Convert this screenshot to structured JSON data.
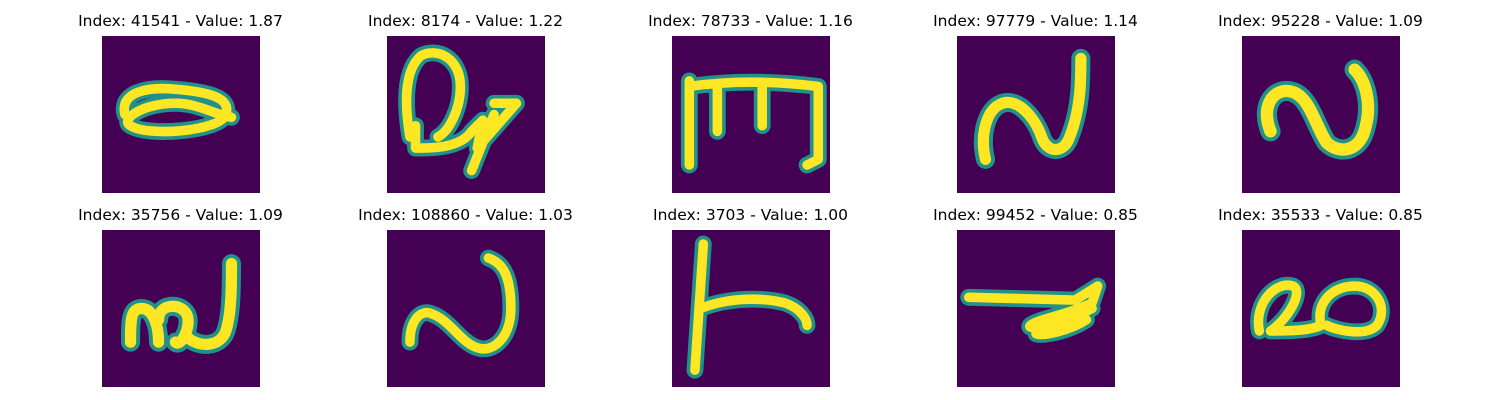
{
  "panels": [
    {
      "title": "Index: 41541 - Value: 1.87",
      "glyph": "loop-shape"
    },
    {
      "title": "Index: 8174 - Value: 1.22",
      "glyph": "loop-arrow-shape"
    },
    {
      "title": "Index: 78733 - Value: 1.16",
      "glyph": "comb-shape"
    },
    {
      "title": "Index: 97779 - Value: 1.14",
      "glyph": "n-wave-shape"
    },
    {
      "title": "Index: 95228 - Value: 1.09",
      "glyph": "n-wave-shape"
    },
    {
      "title": "Index: 35756 - Value: 1.09",
      "glyph": "squiggle-shape"
    },
    {
      "title": "Index: 108860 - Value: 1.03",
      "glyph": "n-wave-shape"
    },
    {
      "title": "Index: 3703 - Value: 1.00",
      "glyph": "t-shape"
    },
    {
      "title": "Index: 99452 - Value: 0.85",
      "glyph": "scribble-shape"
    },
    {
      "title": "Index: 35533 - Value: 0.85",
      "glyph": "double-loop-shape"
    }
  ],
  "colors": {
    "background": "#440154",
    "stroke_bright": "#fde725",
    "stroke_mid": "#35b779",
    "stroke_edge": "#21918c"
  }
}
